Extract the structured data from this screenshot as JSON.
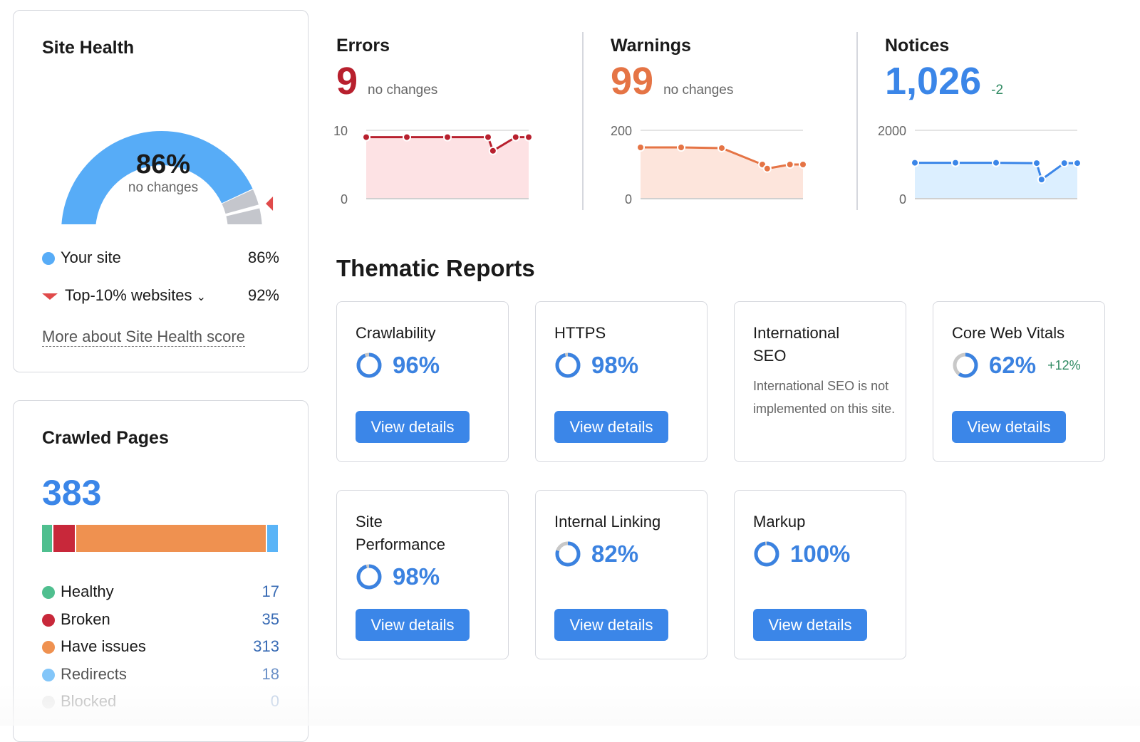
{
  "site_health": {
    "title": "Site Health",
    "value": 86,
    "value_label": "86%",
    "change": "no changes",
    "top10_value": 92,
    "legend": [
      {
        "label": "Your site",
        "value": "86%",
        "color": "#57acf7"
      },
      {
        "label": "Top-10% websites",
        "value": "92%",
        "color": "#e04a4a"
      }
    ],
    "link": "More about Site Health score"
  },
  "metrics": [
    {
      "title": "Errors",
      "value": "9",
      "change": "no changes",
      "color": "#b8202e",
      "fill": "#fde2e4",
      "ymax_label": "10",
      "ymin_label": "0",
      "ymax": 10,
      "values": [
        9,
        9,
        9,
        9,
        7,
        9,
        9
      ]
    },
    {
      "title": "Warnings",
      "value": "99",
      "change": "no changes",
      "color": "#e57445",
      "fill": "#fde5dc",
      "ymax_label": "200",
      "ymin_label": "0",
      "ymax": 200,
      "values": [
        150,
        150,
        148,
        100,
        88,
        100,
        100
      ]
    },
    {
      "title": "Notices",
      "value": "1,026",
      "change": "-2",
      "color": "#3b86e8",
      "fill": "#dcefff",
      "ymax_label": "2000",
      "ymin_label": "0",
      "ymax": 2000,
      "values": [
        1050,
        1050,
        1050,
        1040,
        560,
        1040,
        1040
      ]
    }
  ],
  "thematic": {
    "title": "Thematic Reports",
    "button": "View details",
    "reports": [
      {
        "title": "Crawlability",
        "pct": "96%",
        "value": 96
      },
      {
        "title": "HTTPS",
        "pct": "98%",
        "value": 98
      },
      {
        "title": "International SEO",
        "note": "International SEO is not implemented on this site."
      },
      {
        "title": "Core Web Vitals",
        "pct": "62%",
        "value": 62,
        "change": "+12%"
      },
      {
        "title": "Site Performance",
        "pct": "98%",
        "value": 98
      },
      {
        "title": "Internal Linking",
        "pct": "82%",
        "value": 82
      },
      {
        "title": "Markup",
        "pct": "100%",
        "value": 100
      }
    ]
  },
  "crawled": {
    "title": "Crawled Pages",
    "total": "383",
    "items": [
      {
        "label": "Healthy",
        "value": "17",
        "n": 17,
        "color": "#4fbf8f"
      },
      {
        "label": "Broken",
        "value": "35",
        "n": 35,
        "color": "#c8283a"
      },
      {
        "label": "Have issues",
        "value": "313",
        "n": 313,
        "color": "#ef9150"
      },
      {
        "label": "Redirects",
        "value": "18",
        "n": 18,
        "color": "#5ab4f7"
      },
      {
        "label": "Blocked",
        "value": "0",
        "n": 0,
        "color": "#d0d0d0"
      }
    ]
  }
}
